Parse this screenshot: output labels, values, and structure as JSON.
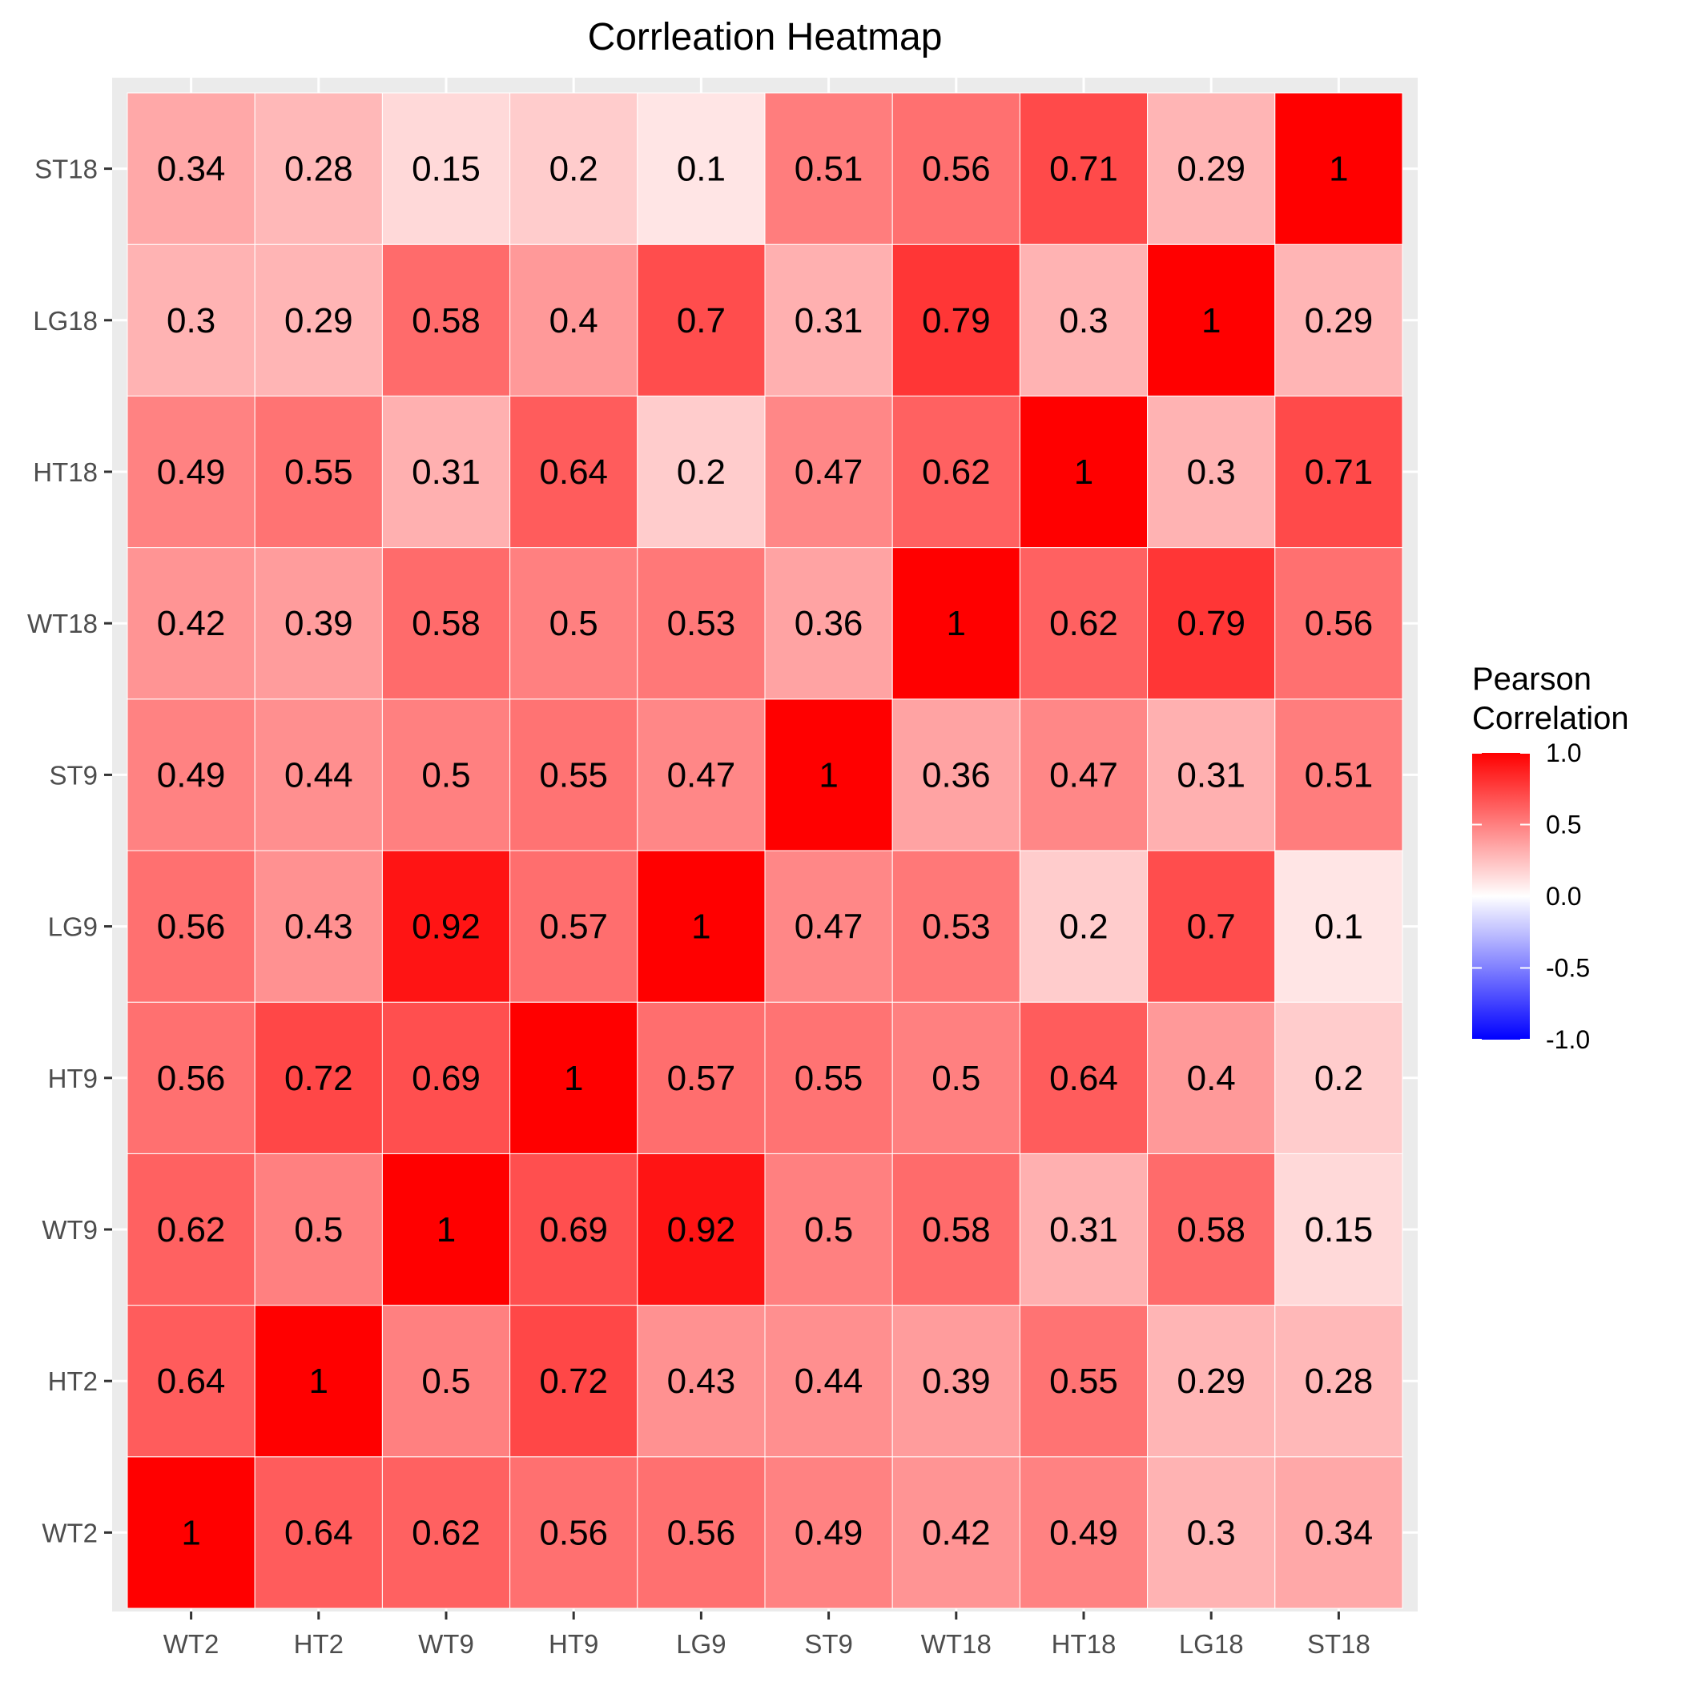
{
  "chart_data": {
    "type": "heatmap",
    "title": "Corrleation Heatmap",
    "xlabel": "",
    "ylabel": "",
    "x_categories": [
      "WT2",
      "HT2",
      "WT9",
      "HT9",
      "LG9",
      "ST9",
      "WT18",
      "HT18",
      "LG18",
      "ST18"
    ],
    "y_categories": [
      "WT2",
      "HT2",
      "WT9",
      "HT9",
      "LG9",
      "ST9",
      "WT18",
      "HT18",
      "LG18",
      "ST18"
    ],
    "values": [
      [
        1,
        0.64,
        0.62,
        0.56,
        0.56,
        0.49,
        0.42,
        0.49,
        0.3,
        0.34
      ],
      [
        0.64,
        1,
        0.5,
        0.72,
        0.43,
        0.44,
        0.39,
        0.55,
        0.29,
        0.28
      ],
      [
        0.62,
        0.5,
        1,
        0.69,
        0.92,
        0.5,
        0.58,
        0.31,
        0.58,
        0.15
      ],
      [
        0.56,
        0.72,
        0.69,
        1,
        0.57,
        0.55,
        0.5,
        0.64,
        0.4,
        0.2
      ],
      [
        0.56,
        0.43,
        0.92,
        0.57,
        1,
        0.47,
        0.53,
        0.2,
        0.7,
        0.1
      ],
      [
        0.49,
        0.44,
        0.5,
        0.55,
        0.47,
        1,
        0.36,
        0.47,
        0.31,
        0.51
      ],
      [
        0.42,
        0.39,
        0.58,
        0.5,
        0.53,
        0.36,
        1,
        0.62,
        0.79,
        0.56
      ],
      [
        0.49,
        0.55,
        0.31,
        0.64,
        0.2,
        0.47,
        0.62,
        1,
        0.3,
        0.71
      ],
      [
        0.3,
        0.29,
        0.58,
        0.4,
        0.7,
        0.31,
        0.79,
        0.3,
        1,
        0.29
      ],
      [
        0.34,
        0.28,
        0.15,
        0.2,
        0.1,
        0.51,
        0.56,
        0.71,
        0.29,
        1
      ]
    ],
    "legend": {
      "title_lines": [
        "Pearson",
        "Correlation"
      ],
      "placement": "right",
      "range": [
        -1,
        1
      ],
      "ticks": [
        1.0,
        0.5,
        0.0,
        -0.5,
        -1.0
      ],
      "tick_labels": [
        "1.0",
        "0.5",
        "0.0",
        "-0.5",
        "-1.0"
      ],
      "colors": {
        "low": "#0000ff",
        "mid": "#ffffff",
        "high": "#ff0000"
      }
    },
    "panel_background": "#ebebeb",
    "grid": true
  }
}
